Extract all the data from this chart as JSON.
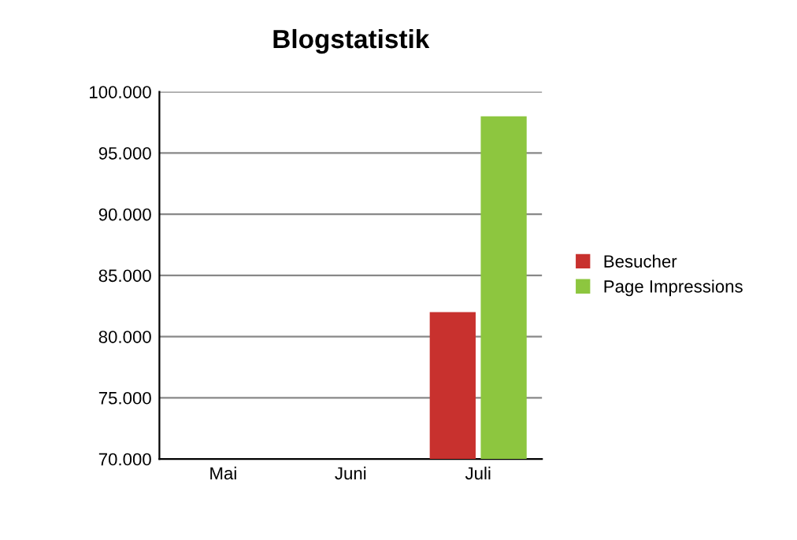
{
  "chart_data": {
    "type": "bar",
    "title": "Blogstatistik",
    "categories": [
      "Mai",
      "Juni",
      "Juli"
    ],
    "series": [
      {
        "name": "Besucher",
        "color": "#c8312e",
        "values": [
          null,
          null,
          82000
        ]
      },
      {
        "name": "Page Impressions",
        "color": "#8dc63f",
        "values": [
          null,
          null,
          98000
        ]
      }
    ],
    "ylim": [
      70000,
      100000
    ],
    "yticks": [
      {
        "value": 70000,
        "label": "70.000"
      },
      {
        "value": 75000,
        "label": "75.000"
      },
      {
        "value": 80000,
        "label": "80.000"
      },
      {
        "value": 85000,
        "label": "85.000"
      },
      {
        "value": 90000,
        "label": "90.000"
      },
      {
        "value": 95000,
        "label": "95.000"
      },
      {
        "value": 100000,
        "label": "100.000"
      }
    ],
    "grid": "y",
    "legend": "right"
  }
}
